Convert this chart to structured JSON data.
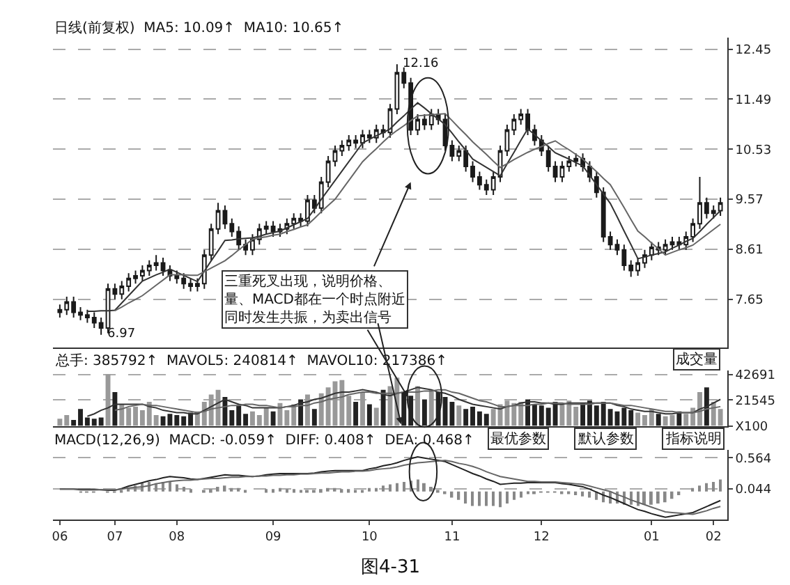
{
  "chart_data": [
    {
      "type": "candlestick",
      "color": "#1a1a1a",
      "grid": "y",
      "tick_labels": "y",
      "ylim": [
        6.72,
        12.67
      ],
      "yticks": [
        7.65,
        8.61,
        9.57,
        10.53,
        11.49,
        12.45
      ],
      "annotations": [
        "日线(前复权)  MA5: 10.09↑  MA10: 10.65↑",
        "12.16",
        "6.97",
        "三重死叉出现，说明价格、量、MACD都在一个时点附近同时发生共振，为卖出信号"
      ],
      "categories": [
        "06",
        null,
        null,
        null,
        null,
        null,
        null,
        null,
        "07",
        null,
        null,
        null,
        null,
        null,
        null,
        null,
        null,
        "08",
        null,
        null,
        null,
        null,
        null,
        null,
        null,
        null,
        null,
        null,
        null,
        null,
        null,
        "09",
        null,
        null,
        null,
        null,
        null,
        null,
        null,
        null,
        null,
        null,
        null,
        null,
        null,
        "10",
        null,
        null,
        null,
        null,
        null,
        null,
        null,
        null,
        null,
        null,
        null,
        "11",
        null,
        null,
        null,
        null,
        null,
        null,
        null,
        null,
        null,
        null,
        null,
        null,
        "12",
        null,
        null,
        null,
        null,
        null,
        null,
        null,
        null,
        null,
        null,
        null,
        null,
        null,
        null,
        null,
        "01",
        null,
        null,
        null,
        null,
        null,
        null,
        null,
        null,
        "02",
        null
      ],
      "ohlc": [
        [
          7.4,
          7.55,
          7.3,
          7.45
        ],
        [
          7.45,
          7.7,
          7.35,
          7.6
        ],
        [
          7.6,
          7.7,
          7.3,
          7.4
        ],
        [
          7.4,
          7.5,
          7.25,
          7.35
        ],
        [
          7.35,
          7.45,
          7.2,
          7.3
        ],
        [
          7.3,
          7.4,
          7.1,
          7.2
        ],
        [
          7.2,
          7.3,
          6.97,
          7.1
        ],
        [
          7.1,
          7.95,
          7.0,
          7.85
        ],
        [
          7.85,
          7.95,
          7.65,
          7.75
        ],
        [
          7.75,
          8.0,
          7.65,
          7.9
        ],
        [
          7.9,
          8.15,
          7.8,
          8.05
        ],
        [
          8.05,
          8.2,
          7.95,
          8.1
        ],
        [
          8.1,
          8.3,
          8.0,
          8.2
        ],
        [
          8.2,
          8.4,
          8.1,
          8.3
        ],
        [
          8.3,
          8.5,
          8.2,
          8.35
        ],
        [
          8.35,
          8.45,
          8.1,
          8.2
        ],
        [
          8.2,
          8.3,
          8.0,
          8.1
        ],
        [
          8.1,
          8.2,
          7.95,
          8.05
        ],
        [
          8.05,
          8.15,
          7.85,
          7.95
        ],
        [
          7.95,
          8.05,
          7.8,
          7.9
        ],
        [
          7.9,
          8.05,
          7.8,
          7.95
        ],
        [
          7.95,
          8.6,
          7.85,
          8.5
        ],
        [
          8.5,
          9.1,
          8.4,
          9.0
        ],
        [
          9.0,
          9.5,
          8.9,
          9.35
        ],
        [
          9.35,
          9.45,
          9.0,
          9.1
        ],
        [
          9.1,
          9.2,
          8.85,
          8.95
        ],
        [
          8.95,
          9.05,
          8.6,
          8.7
        ],
        [
          8.7,
          8.8,
          8.5,
          8.6
        ],
        [
          8.6,
          8.9,
          8.5,
          8.8
        ],
        [
          8.8,
          9.1,
          8.7,
          9.0
        ],
        [
          9.0,
          9.15,
          8.9,
          9.05
        ],
        [
          9.05,
          9.15,
          8.85,
          8.95
        ],
        [
          8.95,
          9.1,
          8.85,
          9.0
        ],
        [
          9.0,
          9.2,
          8.9,
          9.1
        ],
        [
          9.1,
          9.3,
          9.0,
          9.2
        ],
        [
          9.2,
          9.3,
          9.05,
          9.15
        ],
        [
          9.15,
          9.65,
          9.05,
          9.55
        ],
        [
          9.55,
          9.65,
          9.3,
          9.4
        ],
        [
          9.4,
          10.0,
          9.3,
          9.9
        ],
        [
          9.9,
          10.4,
          9.8,
          10.3
        ],
        [
          10.3,
          10.6,
          10.2,
          10.5
        ],
        [
          10.5,
          10.7,
          10.4,
          10.6
        ],
        [
          10.6,
          10.8,
          10.5,
          10.7
        ],
        [
          10.7,
          10.8,
          10.55,
          10.65
        ],
        [
          10.65,
          10.9,
          10.55,
          10.8
        ],
        [
          10.8,
          10.9,
          10.65,
          10.75
        ],
        [
          10.75,
          11.0,
          10.65,
          10.9
        ],
        [
          10.9,
          11.0,
          10.75,
          10.85
        ],
        [
          10.85,
          11.4,
          10.75,
          11.3
        ],
        [
          11.3,
          12.16,
          11.2,
          12.0
        ],
        [
          12.0,
          12.1,
          11.7,
          11.8
        ],
        [
          11.8,
          11.9,
          10.8,
          10.9
        ],
        [
          10.9,
          11.2,
          10.8,
          11.1
        ],
        [
          11.1,
          11.2,
          10.9,
          11.0
        ],
        [
          11.0,
          11.3,
          10.9,
          11.2
        ],
        [
          11.2,
          11.3,
          11.0,
          11.1
        ],
        [
          11.1,
          11.2,
          10.5,
          10.6
        ],
        [
          10.6,
          10.7,
          10.3,
          10.4
        ],
        [
          10.4,
          10.6,
          10.3,
          10.5
        ],
        [
          10.5,
          10.6,
          10.1,
          10.2
        ],
        [
          10.2,
          10.3,
          9.9,
          10.0
        ],
        [
          10.0,
          10.1,
          9.75,
          9.85
        ],
        [
          9.85,
          9.95,
          9.65,
          9.75
        ],
        [
          9.75,
          10.1,
          9.65,
          10.0
        ],
        [
          10.0,
          10.6,
          9.9,
          10.5
        ],
        [
          10.5,
          11.0,
          10.4,
          10.9
        ],
        [
          10.9,
          11.2,
          10.8,
          11.1
        ],
        [
          11.1,
          11.3,
          11.0,
          11.2
        ],
        [
          11.2,
          11.3,
          10.8,
          10.9
        ],
        [
          10.9,
          11.0,
          10.6,
          10.7
        ],
        [
          10.7,
          10.8,
          10.4,
          10.5
        ],
        [
          10.5,
          10.6,
          10.1,
          10.2
        ],
        [
          10.2,
          10.3,
          9.9,
          10.0
        ],
        [
          10.0,
          10.3,
          9.9,
          10.2
        ],
        [
          10.2,
          10.4,
          10.1,
          10.3
        ],
        [
          10.3,
          10.45,
          10.2,
          10.35
        ],
        [
          10.35,
          10.45,
          10.1,
          10.2
        ],
        [
          10.2,
          10.3,
          9.9,
          10.0
        ],
        [
          10.0,
          10.1,
          9.6,
          9.7
        ],
        [
          9.7,
          9.8,
          8.75,
          8.85
        ],
        [
          8.85,
          8.95,
          8.6,
          8.7
        ],
        [
          8.7,
          8.8,
          8.5,
          8.6
        ],
        [
          8.6,
          8.7,
          8.2,
          8.3
        ],
        [
          8.3,
          8.4,
          8.08,
          8.2
        ],
        [
          8.2,
          8.45,
          8.1,
          8.35
        ],
        [
          8.35,
          8.6,
          8.25,
          8.5
        ],
        [
          8.5,
          8.75,
          8.4,
          8.65
        ],
        [
          8.65,
          8.75,
          8.5,
          8.6
        ],
        [
          8.6,
          8.8,
          8.5,
          8.7
        ],
        [
          8.7,
          8.85,
          8.6,
          8.75
        ],
        [
          8.75,
          8.85,
          8.6,
          8.7
        ],
        [
          8.7,
          8.95,
          8.6,
          8.85
        ],
        [
          8.85,
          9.2,
          8.75,
          9.1
        ],
        [
          9.1,
          10.0,
          9.0,
          9.5
        ],
        [
          9.5,
          9.6,
          9.2,
          9.3
        ],
        [
          9.3,
          9.45,
          9.2,
          9.35
        ],
        [
          9.35,
          9.6,
          9.25,
          9.5
        ]
      ],
      "series": [
        {
          "type": "line",
          "color": "#333333",
          "values": [
            null,
            null,
            null,
            null,
            7.42,
            7.42,
            7.43,
            7.43,
            7.44,
            7.58,
            7.72,
            7.86,
            8.0,
            8.06,
            8.12,
            8.17,
            8.23,
            8.17,
            8.11,
            8.05,
            7.99,
            8.19,
            8.39,
            8.58,
            8.78,
            8.79,
            8.81,
            8.82,
            8.83,
            8.86,
            8.9,
            8.93,
            8.96,
            9.02,
            9.08,
            9.14,
            9.2,
            9.38,
            9.57,
            9.75,
            9.93,
            10.11,
            10.29,
            10.47,
            10.65,
            10.72,
            10.79,
            10.85,
            10.92,
            11.05,
            11.17,
            11.3,
            11.42,
            11.32,
            11.21,
            11.11,
            11.0,
            10.84,
            10.67,
            10.51,
            10.34,
            10.26,
            10.18,
            10.1,
            10.02,
            10.25,
            10.47,
            10.7,
            10.92,
            10.81,
            10.69,
            10.58,
            10.46,
            10.4,
            10.34,
            10.27,
            10.21,
            10.03,
            9.85,
            9.67,
            9.49,
            9.23,
            8.96,
            8.7,
            8.43,
            8.46,
            8.5,
            8.53,
            8.56,
            8.63,
            8.69,
            8.76,
            8.82,
            8.95,
            9.09,
            9.22,
            9.35
          ]
        },
        {
          "type": "line",
          "color": "#666666",
          "values": [
            null,
            null,
            null,
            null,
            null,
            null,
            null,
            null,
            7.43,
            7.5,
            7.58,
            7.65,
            7.72,
            7.82,
            7.92,
            8.02,
            8.12,
            8.12,
            8.12,
            8.11,
            8.11,
            8.18,
            8.25,
            8.32,
            8.39,
            8.49,
            8.6,
            8.7,
            8.8,
            8.83,
            8.85,
            8.88,
            8.9,
            8.95,
            8.99,
            9.04,
            9.08,
            9.2,
            9.33,
            9.45,
            9.57,
            9.75,
            9.93,
            10.11,
            10.29,
            10.42,
            10.54,
            10.67,
            10.79,
            10.89,
            10.98,
            11.08,
            11.17,
            11.18,
            11.19,
            11.2,
            11.21,
            11.08,
            10.94,
            10.81,
            10.67,
            10.55,
            10.43,
            10.3,
            10.18,
            10.25,
            10.33,
            10.4,
            10.47,
            10.53,
            10.58,
            10.64,
            10.69,
            10.6,
            10.52,
            10.43,
            10.34,
            10.22,
            10.1,
            9.97,
            9.85,
            9.63,
            9.41,
            9.18,
            8.96,
            8.85,
            8.73,
            8.62,
            8.5,
            8.55,
            8.6,
            8.64,
            8.69,
            8.79,
            8.89,
            8.99,
            9.09
          ]
        }
      ]
    },
    {
      "type": "bar",
      "grid": "y",
      "tick_labels": "y",
      "ylim": [
        0,
        46000
      ],
      "yticks": [
        {
          "value": 0,
          "label": "X100"
        },
        21545,
        42691
      ],
      "annotations": [
        "总手: 385792↑  MAVOL5: 240814↑  MAVOL10: 217386↑",
        "成交量"
      ],
      "categories": [
        "06",
        null,
        null,
        null,
        null,
        null,
        null,
        null,
        "07",
        null,
        null,
        null,
        null,
        null,
        null,
        null,
        null,
        "08",
        null,
        null,
        null,
        null,
        null,
        null,
        null,
        null,
        null,
        null,
        null,
        null,
        null,
        "09",
        null,
        null,
        null,
        null,
        null,
        null,
        null,
        null,
        null,
        null,
        null,
        null,
        null,
        "10",
        null,
        null,
        null,
        null,
        null,
        null,
        null,
        null,
        null,
        null,
        null,
        "11",
        null,
        null,
        null,
        null,
        null,
        null,
        null,
        null,
        null,
        null,
        null,
        null,
        "12",
        null,
        null,
        null,
        null,
        null,
        null,
        null,
        null,
        null,
        null,
        null,
        null,
        null,
        null,
        null,
        "01",
        null,
        null,
        null,
        null,
        null,
        null,
        null,
        null,
        "02",
        null
      ],
      "series": [
        {
          "values": [
            6000,
            9000,
            5000,
            14000,
            7000,
            6000,
            7000,
            43000,
            28000,
            18000,
            15000,
            16000,
            13000,
            20000,
            9000,
            8000,
            10000,
            9000,
            8000,
            11000,
            12000,
            20000,
            26000,
            30000,
            24000,
            13000,
            17000,
            10000,
            12000,
            9000,
            15000,
            12000,
            19000,
            13000,
            18000,
            22000,
            26000,
            14000,
            27000,
            32000,
            37000,
            38000,
            25000,
            20000,
            28000,
            18000,
            15000,
            30000,
            33000,
            40000,
            28000,
            25000,
            33000,
            22000,
            30000,
            28000,
            24000,
            20000,
            17000,
            14000,
            16000,
            12000,
            10000,
            14000,
            18000,
            21000,
            19000,
            20000,
            22000,
            18000,
            17000,
            15000,
            20000,
            18000,
            21000,
            16000,
            19000,
            21000,
            17000,
            20000,
            14000,
            12000,
            15000,
            13000,
            11000,
            9000,
            14000,
            10000,
            8000,
            9000,
            12000,
            10000,
            15000,
            28000,
            32000,
            20000,
            14000
          ],
          "colors": [
            "#999999",
            "#999999",
            "#222222",
            "#222222",
            "#222222",
            "#222222",
            "#222222",
            "#999999",
            "#222222",
            "#999999",
            "#999999",
            "#999999",
            "#999999",
            "#999999",
            "#999999",
            "#222222",
            "#222222",
            "#222222",
            "#222222",
            "#222222",
            "#999999",
            "#999999",
            "#999999",
            "#999999",
            "#222222",
            "#222222",
            "#222222",
            "#222222",
            "#999999",
            "#999999",
            "#999999",
            "#222222",
            "#999999",
            "#999999",
            "#999999",
            "#222222",
            "#999999",
            "#222222",
            "#999999",
            "#999999",
            "#999999",
            "#999999",
            "#999999",
            "#222222",
            "#999999",
            "#222222",
            "#999999",
            "#222222",
            "#999999",
            "#999999",
            "#222222",
            "#222222",
            "#999999",
            "#222222",
            "#999999",
            "#222222",
            "#222222",
            "#222222",
            "#999999",
            "#222222",
            "#222222",
            "#222222",
            "#222222",
            "#999999",
            "#999999",
            "#999999",
            "#999999",
            "#999999",
            "#222222",
            "#222222",
            "#222222",
            "#222222",
            "#222222",
            "#999999",
            "#999999",
            "#999999",
            "#222222",
            "#222222",
            "#222222",
            "#222222",
            "#222222",
            "#222222",
            "#222222",
            "#222222",
            "#999999",
            "#999999",
            "#999999",
            "#222222",
            "#999999",
            "#999999",
            "#222222",
            "#999999",
            "#999999",
            "#999999",
            "#222222",
            "#999999",
            "#999999"
          ]
        },
        {
          "type": "line",
          "color": "#333333",
          "values": [
            null,
            null,
            null,
            null,
            8000,
            10000,
            13000,
            15000,
            18000,
            18000,
            18000,
            18000,
            18000,
            16000,
            15000,
            13000,
            12000,
            11000,
            11000,
            10000,
            10000,
            13000,
            16000,
            19000,
            22000,
            20000,
            18000,
            17000,
            15000,
            15000,
            15000,
            15000,
            15000,
            16000,
            17000,
            19000,
            20000,
            22000,
            23000,
            25000,
            27000,
            28000,
            28000,
            29000,
            30000,
            29000,
            28000,
            26000,
            25000,
            27000,
            28000,
            30000,
            32000,
            31000,
            30000,
            28000,
            27000,
            25000,
            22000,
            20000,
            18000,
            17000,
            16000,
            15000,
            14000,
            16000,
            17000,
            19000,
            20000,
            20000,
            19000,
            19000,
            18000,
            18000,
            19000,
            19000,
            19000,
            19000,
            19000,
            19000,
            19000,
            17000,
            16000,
            14000,
            13000,
            12000,
            12000,
            11000,
            10000,
            10000,
            11000,
            11000,
            11000,
            14000,
            16000,
            19000,
            22000
          ]
        },
        {
          "type": "line",
          "color": "#666666",
          "values": [
            null,
            null,
            null,
            null,
            null,
            null,
            null,
            null,
            13000,
            14000,
            16000,
            17000,
            18000,
            17000,
            17000,
            16000,
            15000,
            14000,
            13000,
            12000,
            11000,
            12000,
            14000,
            15000,
            16000,
            17000,
            17000,
            18000,
            18000,
            17000,
            17000,
            16000,
            15000,
            16000,
            16000,
            17000,
            17000,
            19000,
            20000,
            22000,
            23000,
            24000,
            26000,
            27000,
            28000,
            28000,
            27000,
            27000,
            27000,
            27000,
            28000,
            28000,
            28000,
            29000,
            29000,
            30000,
            30000,
            28000,
            27000,
            25000,
            23000,
            21000,
            20000,
            18000,
            16000,
            16000,
            17000,
            17000,
            17000,
            18000,
            18000,
            19000,
            19000,
            19000,
            18000,
            18000,
            18000,
            18000,
            19000,
            19000,
            19000,
            18000,
            17000,
            17000,
            16000,
            15000,
            14000,
            13000,
            12000,
            12000,
            11000,
            11000,
            11000,
            12000,
            14000,
            15000,
            16000
          ]
        }
      ]
    },
    {
      "type": "line",
      "grid": "y",
      "ylim": [
        -0.47,
        0.7
      ],
      "yticks": [
        0.044,
        0.564
      ],
      "categories": [
        "06",
        null,
        null,
        null,
        null,
        null,
        null,
        null,
        "07",
        null,
        null,
        null,
        null,
        null,
        null,
        null,
        null,
        "08",
        null,
        null,
        null,
        null,
        null,
        null,
        null,
        null,
        null,
        null,
        null,
        null,
        null,
        "09",
        null,
        null,
        null,
        null,
        null,
        null,
        null,
        null,
        null,
        null,
        null,
        null,
        null,
        "10",
        null,
        null,
        null,
        null,
        null,
        null,
        null,
        null,
        null,
        null,
        null,
        "11",
        null,
        null,
        null,
        null,
        null,
        null,
        null,
        null,
        null,
        null,
        null,
        null,
        "12",
        null,
        null,
        null,
        null,
        null,
        null,
        null,
        null,
        null,
        null,
        null,
        null,
        null,
        null,
        null,
        "01",
        null,
        null,
        null,
        null,
        null,
        null,
        null,
        null,
        "02",
        null
      ],
      "annotations": [
        "MACD(12,26,9)  MACD: -0.059↑  DIFF: 0.408↑  DEA: 0.468↑",
        "最优参数",
        "默认参数",
        "指标说明",
        "图4-31"
      ],
      "series": [
        {
          "type": "bar",
          "color": "#888888",
          "values": [
            0,
            0,
            0,
            -0.02,
            -0.02,
            -0.02,
            0,
            -0.02,
            -0.02,
            0.02,
            0.06,
            0.1,
            0.14,
            0.16,
            0.14,
            0.16,
            0.16,
            0.12,
            0.08,
            0.04,
            0,
            0.02,
            0.04,
            0.08,
            0.1,
            0.06,
            0.06,
            0.02,
            0,
            0,
            0.04,
            0.04,
            0.06,
            0.04,
            0.04,
            0.02,
            0.02,
            0.02,
            0.04,
            0.06,
            0.06,
            0.04,
            0.04,
            0.02,
            0.02,
            0.06,
            0.06,
            0.1,
            0.12,
            0.14,
            0.16,
            0.18,
            0.2,
            0.14,
            0.08,
            0.02,
            -0.04,
            -0.1,
            -0.14,
            -0.2,
            -0.24,
            -0.24,
            -0.24,
            -0.24,
            -0.26,
            -0.2,
            -0.14,
            -0.1,
            -0.04,
            -0.04,
            -0.02,
            -0.02,
            -0.02,
            -0.04,
            -0.04,
            -0.06,
            -0.08,
            -0.1,
            -0.14,
            -0.18,
            -0.2,
            -0.2,
            -0.22,
            -0.22,
            -0.24,
            -0.22,
            -0.22,
            -0.2,
            -0.18,
            -0.12,
            -0.06,
            0,
            0.06,
            0.1,
            0.14,
            0.16,
            0.2
          ]
        },
        {
          "color": "#222222",
          "values": [
            0.04,
            0.04,
            0.04,
            0.03,
            0.03,
            0.03,
            0.03,
            0.02,
            0.02,
            0.05,
            0.09,
            0.12,
            0.15,
            0.18,
            0.2,
            0.23,
            0.25,
            0.24,
            0.23,
            0.21,
            0.2,
            0.22,
            0.24,
            0.26,
            0.28,
            0.27,
            0.27,
            0.26,
            0.25,
            0.26,
            0.28,
            0.29,
            0.3,
            0.3,
            0.3,
            0.3,
            0.3,
            0.31,
            0.33,
            0.34,
            0.35,
            0.35,
            0.35,
            0.35,
            0.35,
            0.38,
            0.4,
            0.43,
            0.45,
            0.48,
            0.52,
            0.55,
            0.58,
            0.56,
            0.54,
            0.52,
            0.5,
            0.45,
            0.4,
            0.35,
            0.3,
            0.26,
            0.21,
            0.17,
            0.12,
            0.13,
            0.14,
            0.14,
            0.15,
            0.15,
            0.15,
            0.15,
            0.15,
            0.13,
            0.12,
            0.1,
            0.08,
            0.04,
            -0.01,
            -0.06,
            -0.1,
            -0.15,
            -0.2,
            -0.25,
            -0.3,
            -0.33,
            -0.37,
            -0.4,
            -0.43,
            -0.41,
            -0.39,
            -0.37,
            -0.35,
            -0.3,
            -0.25,
            -0.2,
            -0.15
          ]
        },
        {
          "color": "#666666",
          "values": [
            0.04,
            0.04,
            0.04,
            0.04,
            0.04,
            0.04,
            0.03,
            0.03,
            0.03,
            0.04,
            0.06,
            0.07,
            0.08,
            0.1,
            0.13,
            0.15,
            0.17,
            0.18,
            0.19,
            0.19,
            0.2,
            0.21,
            0.22,
            0.22,
            0.23,
            0.24,
            0.24,
            0.25,
            0.25,
            0.26,
            0.26,
            0.27,
            0.27,
            0.28,
            0.28,
            0.29,
            0.29,
            0.3,
            0.31,
            0.31,
            0.32,
            0.33,
            0.33,
            0.34,
            0.34,
            0.35,
            0.37,
            0.38,
            0.39,
            0.41,
            0.44,
            0.46,
            0.48,
            0.49,
            0.5,
            0.51,
            0.52,
            0.5,
            0.47,
            0.45,
            0.42,
            0.38,
            0.33,
            0.29,
            0.25,
            0.23,
            0.21,
            0.19,
            0.17,
            0.17,
            0.16,
            0.16,
            0.16,
            0.15,
            0.14,
            0.13,
            0.12,
            0.09,
            0.06,
            0.03,
            0.0,
            -0.05,
            -0.09,
            -0.14,
            -0.18,
            -0.22,
            -0.26,
            -0.3,
            -0.34,
            -0.35,
            -0.36,
            -0.37,
            -0.38,
            -0.35,
            -0.32,
            -0.28,
            -0.25
          ]
        }
      ]
    }
  ]
}
